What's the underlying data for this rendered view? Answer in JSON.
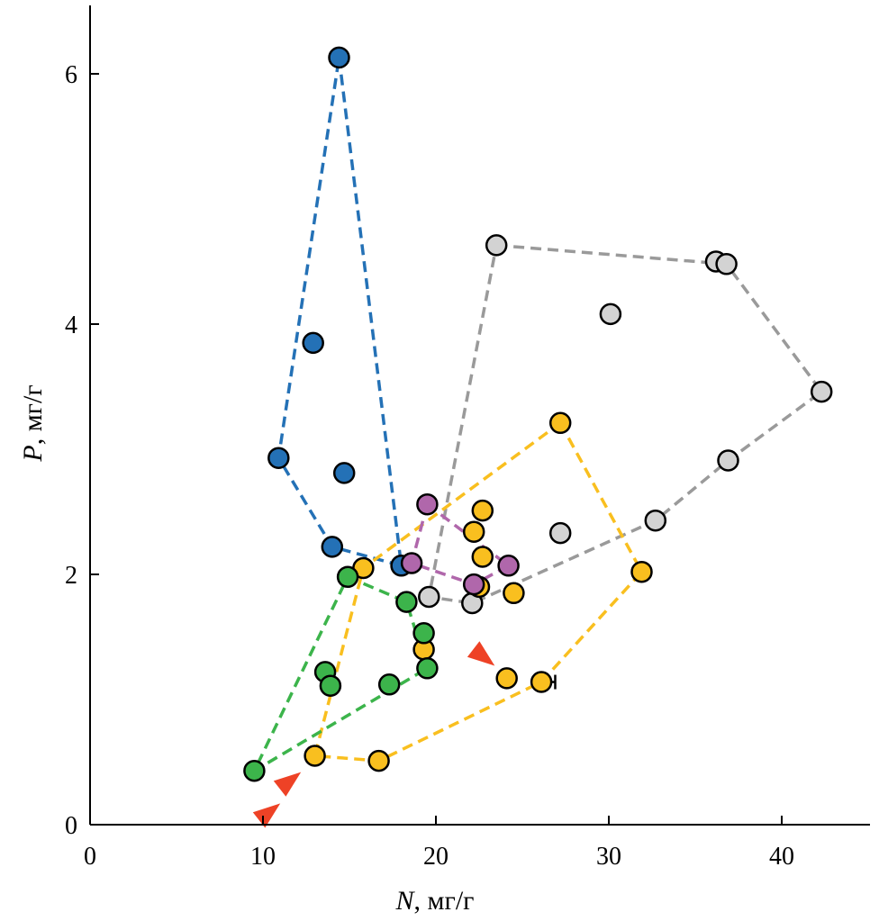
{
  "chart_data": {
    "type": "scatter",
    "xlabel": {
      "var": "N",
      "unit": ", мг/г"
    },
    "ylabel": {
      "var": "P",
      "unit": ", мг/г"
    },
    "xlim": [
      0,
      45
    ],
    "ylim": [
      0,
      6.5
    ],
    "xticks": [
      "0",
      "10",
      "20",
      "30",
      "40"
    ],
    "yticks": [
      "0",
      "2",
      "4",
      "6"
    ],
    "grid": false,
    "series": [
      {
        "color": "#2471b6",
        "points": [
          [
            14.4,
            6.13
          ],
          [
            12.9,
            3.85
          ],
          [
            10.9,
            2.93
          ],
          [
            14.7,
            2.81
          ],
          [
            14.0,
            2.22
          ],
          [
            18.0,
            2.07
          ]
        ],
        "hull": [
          [
            14.4,
            6.13
          ],
          [
            18.0,
            2.07
          ],
          [
            14.0,
            2.22
          ],
          [
            10.9,
            2.93
          ]
        ]
      },
      {
        "color": "#d3d3d3",
        "hull_color": "#9a9a9a",
        "points": [
          [
            23.5,
            4.63
          ],
          [
            36.2,
            4.5
          ],
          [
            36.8,
            4.48
          ],
          [
            30.1,
            4.08
          ],
          [
            42.3,
            3.46
          ],
          [
            36.9,
            2.91
          ],
          [
            32.7,
            2.43
          ],
          [
            27.2,
            2.33
          ],
          [
            19.6,
            1.82
          ],
          [
            22.1,
            1.77
          ]
        ],
        "hull": [
          [
            23.5,
            4.63
          ],
          [
            36.8,
            4.48
          ],
          [
            42.3,
            3.46
          ],
          [
            36.9,
            2.91
          ],
          [
            32.7,
            2.43
          ],
          [
            22.1,
            1.77
          ],
          [
            19.6,
            1.82
          ]
        ]
      },
      {
        "color": "#f9bf1f",
        "points": [
          [
            27.2,
            3.21
          ],
          [
            22.7,
            2.51
          ],
          [
            22.2,
            2.34
          ],
          [
            22.7,
            2.14
          ],
          [
            15.8,
            2.05
          ],
          [
            31.9,
            2.02
          ],
          [
            22.5,
            1.9
          ],
          [
            24.5,
            1.85
          ],
          [
            19.3,
            1.4
          ],
          [
            24.1,
            1.17
          ],
          [
            26.1,
            1.14
          ],
          [
            13.0,
            0.55
          ],
          [
            16.7,
            0.51
          ]
        ],
        "hull": [
          [
            27.2,
            3.21
          ],
          [
            31.9,
            2.02
          ],
          [
            26.1,
            1.14
          ],
          [
            16.7,
            0.51
          ],
          [
            13.0,
            0.55
          ],
          [
            15.8,
            2.05
          ]
        ]
      },
      {
        "color": "#b067ab",
        "points": [
          [
            19.5,
            2.56
          ],
          [
            24.2,
            2.07
          ],
          [
            18.6,
            2.09
          ],
          [
            22.2,
            1.92
          ]
        ],
        "hull": [
          [
            19.5,
            2.56
          ],
          [
            24.2,
            2.07
          ],
          [
            22.2,
            1.92
          ],
          [
            18.6,
            2.09
          ]
        ]
      },
      {
        "color": "#3cb44b",
        "points": [
          [
            14.9,
            1.98
          ],
          [
            18.3,
            1.78
          ],
          [
            19.3,
            1.53
          ],
          [
            19.5,
            1.25
          ],
          [
            13.6,
            1.22
          ],
          [
            13.9,
            1.11
          ],
          [
            17.3,
            1.12
          ],
          [
            9.5,
            0.43
          ]
        ],
        "hull": [
          [
            14.9,
            1.98
          ],
          [
            18.3,
            1.78
          ],
          [
            19.5,
            1.25
          ],
          [
            9.5,
            0.43
          ]
        ]
      }
    ],
    "error_bars": [
      {
        "y": 1.17,
        "x_from": 23.9,
        "x_to": 24.5
      },
      {
        "y": 1.14,
        "x_from": 26.1,
        "x_to": 26.9
      }
    ],
    "annotations": [
      {
        "kind": "arrow",
        "color": "#ee4226",
        "tip": [
          12.2,
          0.42
        ],
        "angle_deg": 38
      },
      {
        "kind": "arrow",
        "color": "#ee4226",
        "tip": [
          11.0,
          0.17
        ],
        "angle_deg": 38
      },
      {
        "kind": "arrow",
        "color": "#ee4226",
        "tip": [
          23.4,
          1.27
        ],
        "angle_deg": -38
      }
    ]
  }
}
